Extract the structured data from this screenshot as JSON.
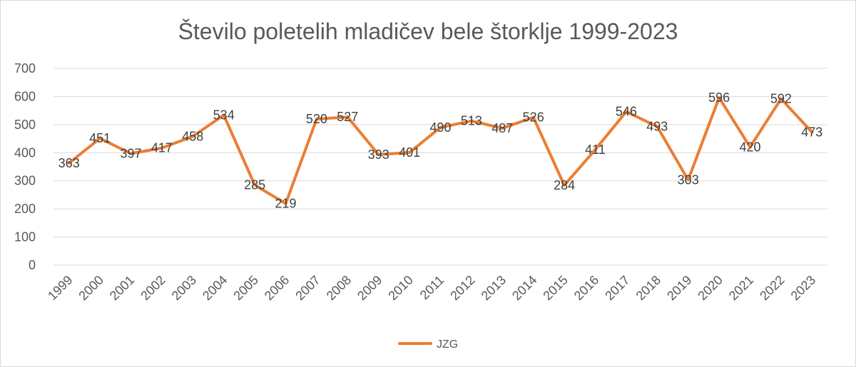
{
  "chart_data": {
    "type": "line",
    "title": "Število poletelih mladičev bele štorklje 1999-2023",
    "categories": [
      "1999",
      "2000",
      "2001",
      "2002",
      "2003",
      "2004",
      "2005",
      "2006",
      "2007",
      "2008",
      "2009",
      "2010",
      "2011",
      "2012",
      "2013",
      "2014",
      "2015",
      "2016",
      "2017",
      "2018",
      "2019",
      "2020",
      "2021",
      "2022",
      "2023"
    ],
    "series": [
      {
        "name": "JZG",
        "color": "#ED7D31",
        "values": [
          363,
          451,
          397,
          417,
          458,
          534,
          285,
          219,
          520,
          527,
          393,
          401,
          490,
          513,
          487,
          526,
          284,
          411,
          546,
          493,
          303,
          596,
          420,
          592,
          473
        ]
      }
    ],
    "ylim": [
      0,
      700
    ],
    "yticks": [
      0,
      100,
      200,
      300,
      400,
      500,
      600,
      700
    ],
    "grid": true,
    "legend": "bottom",
    "data_labels": true
  }
}
